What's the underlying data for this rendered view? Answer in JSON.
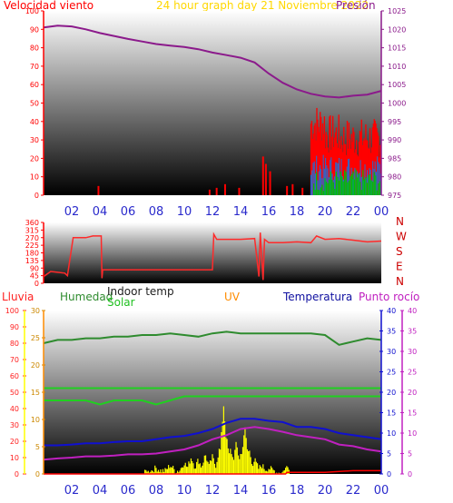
{
  "title": "24 hour graph day   21 Noviembre 2022",
  "x_ticks": [
    "02",
    "04",
    "06",
    "08",
    "10",
    "12",
    "14",
    "16",
    "18",
    "20",
    "22",
    "00"
  ],
  "colors": {
    "wind": "#ff0000",
    "gust_blue": "#1e6ed8",
    "gust_green": "#00c000",
    "pressure": "#8b1a8b",
    "direction": "#ff2a2a",
    "humidity": "#2e8b2e",
    "indoor_temp": "#20d020",
    "solar": "#ffff00",
    "uv": "#ff8c00",
    "temperature": "#1010d0",
    "dewpoint": "#c020c0",
    "rain": "#ff0000",
    "xtick": "#2a2acc"
  },
  "chart_data": [
    {
      "type": "line",
      "labels": {
        "left": "Velocidad viento",
        "right": "Presión"
      },
      "y_left_ticks": [
        "0",
        "10",
        "20",
        "30",
        "40",
        "50",
        "60",
        "70",
        "80",
        "90",
        "100"
      ],
      "y_right_ticks": [
        "975",
        "980",
        "985",
        "990",
        "995",
        "1000",
        "1005",
        "1010",
        "1015",
        "1020",
        "1025"
      ],
      "ylim_left": [
        0,
        100
      ],
      "ylim_right": [
        975,
        1025
      ],
      "series": [
        {
          "name": "Presión",
          "axis": "right",
          "x": [
            0,
            1,
            2,
            3,
            4,
            5,
            6,
            7,
            8,
            9,
            10,
            11,
            12,
            13,
            14,
            15,
            16,
            17,
            18,
            19,
            20,
            21,
            22,
            23,
            24
          ],
          "values": [
            1020.5,
            1021,
            1020.8,
            1020,
            1019,
            1018.2,
            1017.4,
            1016.7,
            1016,
            1015.6,
            1015.2,
            1014.6,
            1013.7,
            1013,
            1012.3,
            1011,
            1008,
            1005.5,
            1003.7,
            1002.5,
            1001.8,
            1001.5,
            1002,
            1002.3,
            1003.3
          ]
        }
      ],
      "wind_spikes": [
        {
          "x": 3.9,
          "v": 5
        },
        {
          "x": 11.8,
          "v": 3
        },
        {
          "x": 12.3,
          "v": 4
        },
        {
          "x": 12.9,
          "v": 6
        },
        {
          "x": 13.9,
          "v": 4
        },
        {
          "x": 15.6,
          "v": 21
        },
        {
          "x": 15.8,
          "v": 17
        },
        {
          "x": 16.1,
          "v": 13
        },
        {
          "x": 17.3,
          "v": 5
        },
        {
          "x": 17.7,
          "v": 6
        },
        {
          "x": 18.4,
          "v": 4
        }
      ]
    },
    {
      "type": "line",
      "y_ticks": [
        "0",
        "45",
        "90",
        "135",
        "180",
        "225",
        "270",
        "315",
        "360"
      ],
      "ylim": [
        0,
        360
      ],
      "compass": [
        "N",
        "W",
        "S",
        "E",
        "N"
      ],
      "series": [
        {
          "name": "direction",
          "x": [
            0,
            0.5,
            1,
            1.5,
            1.7,
            2.1,
            3,
            3.5,
            4.1,
            4.15,
            4.2,
            5,
            7,
            10,
            12,
            12.1,
            12.3,
            14,
            15,
            15.3,
            15.4,
            15.6,
            15.7,
            16,
            17,
            18,
            19,
            19.4,
            20,
            21,
            22,
            23,
            24
          ],
          "values": [
            40,
            70,
            65,
            60,
            45,
            270,
            270,
            280,
            280,
            30,
            80,
            80,
            80,
            80,
            80,
            290,
            260,
            260,
            265,
            40,
            300,
            20,
            260,
            240,
            240,
            245,
            240,
            280,
            260,
            265,
            255,
            245,
            250
          ]
        }
      ]
    },
    {
      "type": "line",
      "labels": {
        "rain": "Lluvia",
        "humidity": "Humedad",
        "indoor": "Indoor temp",
        "solar": "Solar",
        "uv": "UV",
        "temperature": "Temperatura",
        "dewpoint": "Punto rocío"
      },
      "y_rain_ticks": [
        "0",
        "10",
        "20",
        "30",
        "40",
        "50",
        "60",
        "70",
        "80",
        "90",
        "100"
      ],
      "y_solar_ticks": [
        "0",
        "5",
        "10",
        "15",
        "20",
        "25",
        "30"
      ],
      "y_temp_ticks": [
        "0",
        "5",
        "10",
        "15",
        "20",
        "25",
        "30",
        "35",
        "40"
      ],
      "y_dew_ticks": [
        "0",
        "5",
        "10",
        "15",
        "20",
        "25",
        "30",
        "35",
        "40"
      ],
      "ylim_pct": [
        0,
        100
      ],
      "ylim_temp": [
        0,
        40
      ],
      "series": [
        {
          "name": "Humedad",
          "unit": "pct",
          "x": [
            0,
            1,
            2,
            3,
            4,
            5,
            6,
            7,
            8,
            9,
            10,
            11,
            12,
            13,
            14,
            15,
            16,
            17,
            18,
            19,
            20,
            21,
            22,
            23,
            24
          ],
          "values": [
            80,
            82,
            82,
            83,
            83,
            84,
            84,
            85,
            85,
            86,
            85,
            84,
            86,
            87,
            86,
            86,
            86,
            86,
            86,
            86,
            85,
            79,
            81,
            83,
            82
          ]
        },
        {
          "name": "Indoor temp",
          "unit": "temp",
          "x": [
            0,
            1,
            2,
            3,
            4,
            5,
            6,
            7,
            8,
            9,
            10,
            11,
            12,
            13,
            14,
            15,
            16,
            17,
            18,
            19,
            20,
            21,
            22,
            23,
            24
          ],
          "values": [
            21,
            21,
            21,
            21,
            21,
            21,
            21,
            21,
            21,
            21,
            21,
            21,
            21,
            21,
            21,
            21,
            21,
            21,
            21,
            21,
            21,
            21,
            21,
            21,
            21
          ]
        },
        {
          "name": "Solar",
          "unit": "temp",
          "x": [
            0,
            1,
            2,
            3,
            4,
            5,
            6,
            7,
            8,
            9,
            10,
            11,
            12,
            13,
            14,
            15,
            16,
            17,
            18,
            19,
            20,
            21,
            22,
            23,
            24
          ],
          "values": [
            18,
            18,
            18,
            18,
            17,
            18,
            18,
            18,
            17,
            18,
            19,
            19,
            19,
            19,
            19,
            19,
            19,
            19,
            19,
            19,
            19,
            19,
            19,
            19,
            19
          ]
        },
        {
          "name": "Temperatura",
          "unit": "temp",
          "x": [
            0,
            1,
            2,
            3,
            4,
            5,
            6,
            7,
            8,
            9,
            10,
            11,
            12,
            13,
            14,
            15,
            16,
            17,
            18,
            19,
            20,
            21,
            22,
            23,
            24
          ],
          "values": [
            7,
            7,
            7.2,
            7.5,
            7.5,
            7.8,
            8,
            8,
            8.5,
            9,
            9.3,
            10,
            11,
            12.5,
            13.5,
            13.5,
            13,
            12.7,
            11.5,
            11.5,
            11,
            10,
            9.5,
            9,
            8.5
          ]
        },
        {
          "name": "Punto rocío",
          "unit": "temp",
          "x": [
            0,
            1,
            2,
            3,
            4,
            5,
            6,
            7,
            8,
            9,
            10,
            11,
            12,
            13,
            14,
            15,
            16,
            17,
            18,
            19,
            20,
            21,
            22,
            23,
            24
          ],
          "values": [
            3.5,
            3.8,
            4,
            4.3,
            4.3,
            4.5,
            4.8,
            4.8,
            5,
            5.5,
            6,
            7,
            8.5,
            9.5,
            11,
            11.5,
            11,
            10.3,
            9.5,
            9,
            8.5,
            7.2,
            6.8,
            6,
            5.5
          ]
        },
        {
          "name": "Lluvia",
          "unit": "pct",
          "x": [
            0,
            7.5,
            7.6,
            12,
            17.2,
            17.3,
            20,
            22,
            24
          ],
          "values": [
            0,
            0,
            0,
            0,
            0,
            1,
            1,
            2,
            2
          ]
        }
      ],
      "solar_bars": [
        {
          "x": 7.3,
          "v": 1
        },
        {
          "x": 8,
          "v": 0.5
        },
        {
          "x": 9,
          "v": 1
        },
        {
          "x": 10,
          "v": 1.5
        },
        {
          "x": 10.5,
          "v": 2.5
        },
        {
          "x": 11,
          "v": 2
        },
        {
          "x": 11.5,
          "v": 3
        },
        {
          "x": 12,
          "v": 2.5
        },
        {
          "x": 12.5,
          "v": 4
        },
        {
          "x": 12.8,
          "v": 12
        },
        {
          "x": 13,
          "v": 6
        },
        {
          "x": 13.3,
          "v": 4
        },
        {
          "x": 13.7,
          "v": 5
        },
        {
          "x": 14,
          "v": 3
        },
        {
          "x": 14.3,
          "v": 8
        },
        {
          "x": 14.6,
          "v": 4
        },
        {
          "x": 15,
          "v": 2
        },
        {
          "x": 15.5,
          "v": 1
        },
        {
          "x": 16,
          "v": 0.5
        },
        {
          "x": 17.3,
          "v": 3
        }
      ]
    }
  ]
}
